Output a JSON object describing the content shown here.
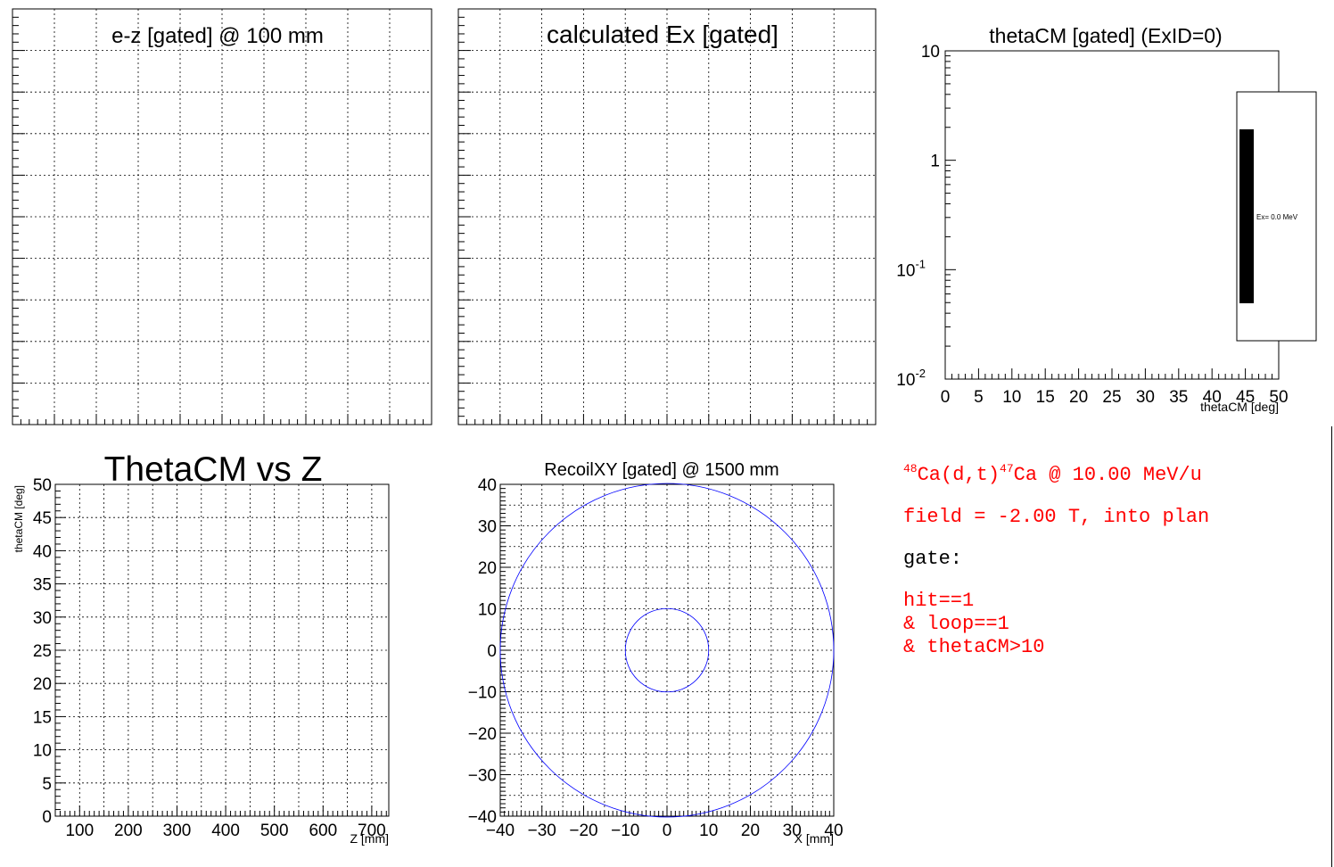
{
  "colors": {
    "frame": "#000000",
    "grid": "#000000",
    "series": "#0000ff",
    "text_red": "#ff0000",
    "legend_marker": "#000000"
  },
  "chart_data": [
    {
      "id": "ez",
      "type": "scatter",
      "title": "e-z [gated] @   100 mm",
      "xlabel": "",
      "ylabel": "",
      "series": [],
      "grid": true,
      "tick_labels": false
    },
    {
      "id": "ex",
      "type": "bar",
      "title": "calculated Ex [gated]",
      "xlabel": "",
      "ylabel": "",
      "series": [],
      "grid": true,
      "tick_labels": false
    },
    {
      "id": "thetacm",
      "type": "bar",
      "title": "thetaCM [gated] (ExID=0)",
      "xlabel": "thetaCM [deg]",
      "ylabel": "",
      "xlim": [
        0,
        50
      ],
      "ylim": [
        0.01,
        10
      ],
      "y_scale": "log",
      "x_ticks": [
        "0",
        "5",
        "10",
        "15",
        "20",
        "25",
        "30",
        "35",
        "40",
        "45",
        "50"
      ],
      "y_ticks": [
        {
          "base": "10",
          "exp": "-2"
        },
        {
          "base": "10",
          "exp": "-1"
        },
        {
          "base": "1",
          "exp": ""
        },
        {
          "base": "10",
          "exp": ""
        }
      ],
      "grid": false,
      "series": [],
      "legend": {
        "position": "right",
        "entries": [
          "Ex=  0.0 MeV"
        ]
      }
    },
    {
      "id": "thetaz",
      "type": "scatter",
      "title": "ThetaCM vs Z",
      "xlabel": "Z [mm]",
      "ylabel": "thetaCM [deg]",
      "xlim": [
        50,
        735
      ],
      "ylim": [
        0,
        50
      ],
      "x_ticks": [
        "100",
        "200",
        "300",
        "400",
        "500",
        "600",
        "700"
      ],
      "y_ticks": [
        "0",
        "5",
        "10",
        "15",
        "20",
        "25",
        "30",
        "35",
        "40",
        "45",
        "50"
      ],
      "grid": true,
      "series": []
    },
    {
      "id": "recoil",
      "type": "scatter",
      "title": "RecoilXY [gated] @ 1500 mm",
      "xlabel": "X [mm]",
      "ylabel": "",
      "xlim": [
        -40,
        40
      ],
      "ylim": [
        -40,
        40
      ],
      "x_ticks": [
        "−40",
        "−30",
        "−20",
        "−10",
        "0",
        "10",
        "20",
        "30",
        "40"
      ],
      "y_ticks": [
        "−40",
        "−30",
        "−20",
        "−10",
        "0",
        "10",
        "20",
        "30",
        "40"
      ],
      "grid": true,
      "shapes": [
        {
          "kind": "circle",
          "cx": 0,
          "cy": 0,
          "r": 40
        },
        {
          "kind": "circle",
          "cx": 0,
          "cy": 0,
          "r": 10
        }
      ]
    }
  ],
  "info": {
    "reaction_sup1": "48",
    "reaction_a": "Ca(d,t)",
    "reaction_sup2": "47",
    "reaction_b": "Ca @ 10.00 MeV/u",
    "field": "field = -2.00 T, into plan",
    "gate_label": "gate:",
    "gates": [
      "hit==1",
      "& loop==1",
      "& thetaCM>10"
    ]
  }
}
